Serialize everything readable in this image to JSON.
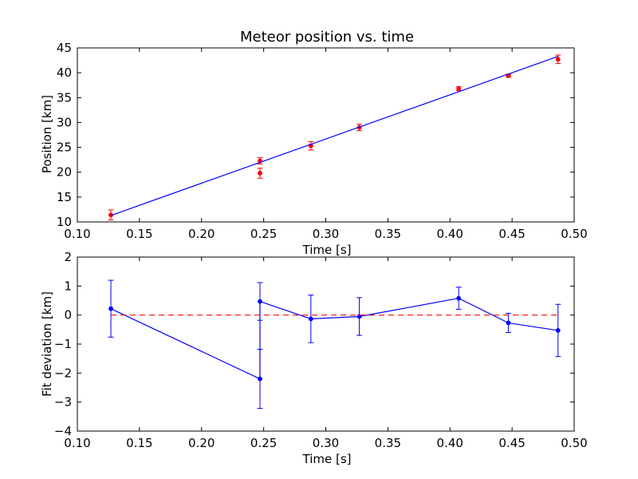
{
  "chart_data": [
    {
      "type": "scatter",
      "title": "Meteor position vs. time",
      "xlabel": "Time [s]",
      "ylabel": "Position [km]",
      "xlim": [
        0.1,
        0.5
      ],
      "ylim": [
        10,
        45
      ],
      "xticks": [
        0.1,
        0.15,
        0.2,
        0.25,
        0.3,
        0.35,
        0.4,
        0.45,
        0.5
      ],
      "xtick_labels": [
        "0.10",
        "0.15",
        "0.20",
        "0.25",
        "0.30",
        "0.35",
        "0.40",
        "0.45",
        "0.50"
      ],
      "yticks": [
        10,
        15,
        20,
        25,
        30,
        35,
        40,
        45
      ],
      "ytick_labels": [
        "10",
        "15",
        "20",
        "25",
        "30",
        "35",
        "40",
        "45"
      ],
      "series": [
        {
          "kind": "points-with-errorbars",
          "color": "#ff0000",
          "x": [
            0.127,
            0.247,
            0.247,
            0.288,
            0.327,
            0.407,
            0.447,
            0.487
          ],
          "y": [
            11.4,
            22.3,
            19.8,
            25.3,
            29.0,
            36.8,
            39.4,
            42.7
          ],
          "yerr": [
            1.0,
            0.65,
            1.0,
            0.85,
            0.65,
            0.4,
            0.3,
            0.85
          ]
        },
        {
          "kind": "fit-line",
          "color": "#0000ff",
          "x": [
            0.127,
            0.487
          ],
          "y": [
            11.3,
            43.3
          ]
        }
      ],
      "grid": false,
      "legend": "none"
    },
    {
      "type": "line",
      "title": "",
      "xlabel": "Time [s]",
      "ylabel": "Fit deviation [km]",
      "xlim": [
        0.1,
        0.5
      ],
      "ylim": [
        -4,
        2
      ],
      "xticks": [
        0.1,
        0.15,
        0.2,
        0.25,
        0.3,
        0.35,
        0.4,
        0.45,
        0.5
      ],
      "xtick_labels": [
        "0.10",
        "0.15",
        "0.20",
        "0.25",
        "0.30",
        "0.35",
        "0.40",
        "0.45",
        "0.50"
      ],
      "yticks": [
        -4,
        -3,
        -2,
        -1,
        0,
        1,
        2
      ],
      "ytick_labels": [
        "−4",
        "−3",
        "−2",
        "−1",
        "0",
        "1",
        "2"
      ],
      "series": [
        {
          "kind": "line-with-errorbars",
          "color": "#0000ff",
          "x": [
            0.127,
            0.247,
            0.247,
            0.288,
            0.327,
            0.407,
            0.447,
            0.487
          ],
          "y": [
            0.22,
            -2.2,
            0.47,
            -0.13,
            -0.05,
            0.58,
            -0.27,
            -0.53
          ],
          "yerr": [
            0.98,
            1.02,
            0.65,
            0.82,
            0.65,
            0.38,
            0.33,
            0.9
          ]
        },
        {
          "kind": "reference-line",
          "color": "#ff0000",
          "style": "dashed",
          "x": [
            0.127,
            0.487
          ],
          "y": [
            0,
            0
          ]
        }
      ],
      "grid": false,
      "legend": "none"
    }
  ]
}
